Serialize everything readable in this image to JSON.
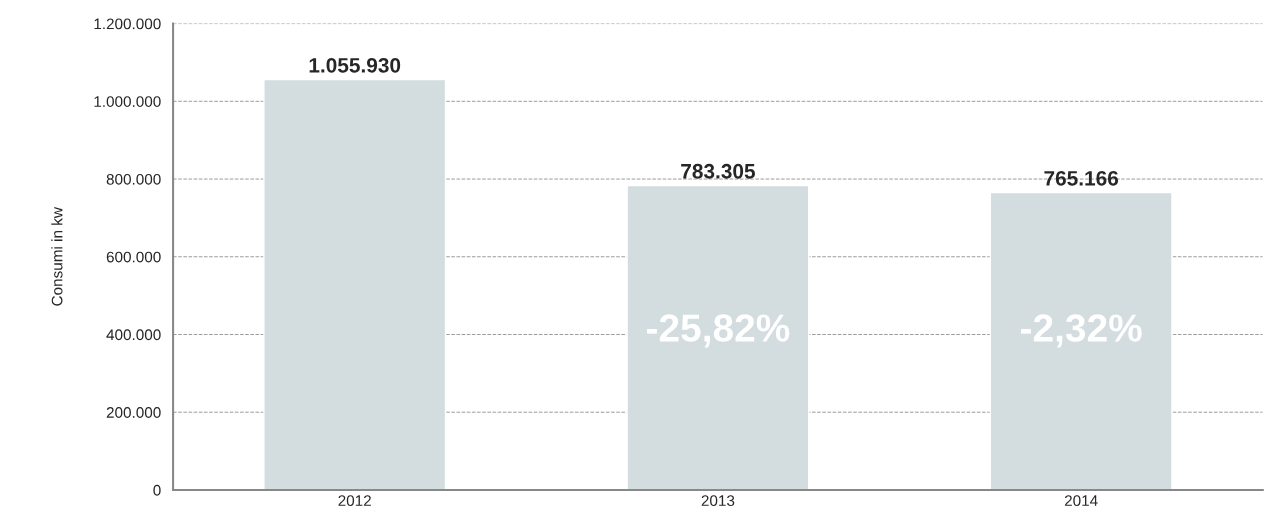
{
  "chart_data": {
    "type": "bar",
    "ylabel": "Consumi in kw",
    "categories": [
      "2012",
      "2013",
      "2014"
    ],
    "values": [
      1055930,
      783305,
      765166
    ],
    "value_labels": [
      "1.055.930",
      "783.305",
      "765.166"
    ],
    "color": "#d3dcdf",
    "ylim": [
      0,
      1200000
    ],
    "yticks": [
      0,
      {
        "value": 200000,
        "label": "200.000"
      },
      {
        "value": 400000,
        "label": "400.000"
      },
      {
        "value": 600000,
        "label": "600.000"
      },
      {
        "value": 800000,
        "label": "800.000"
      },
      {
        "value": 1000000,
        "label": "1.000.000"
      },
      {
        "value": 1200000,
        "label": "1.200.000"
      }
    ],
    "grid": "y",
    "line_style": "dashed",
    "annotations": [
      "-25,82%",
      "-2,32%"
    ]
  }
}
